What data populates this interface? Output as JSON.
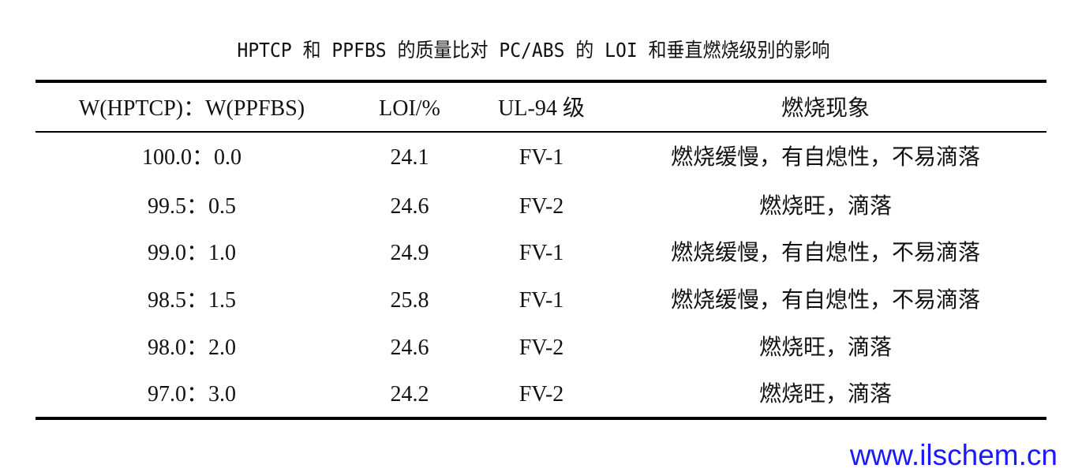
{
  "title": "HPTCP 和 PPFBS 的质量比对 PC/ABS 的 LOI 和垂直燃烧级别的影响",
  "table": {
    "headers": [
      "W(HPTCP)：W(PPFBS)",
      "LOI/%",
      "UL-94 级",
      "燃烧现象"
    ],
    "rows": [
      [
        "100.0：0.0",
        "24.1",
        "FV-1",
        "燃烧缓慢，有自熄性，不易滴落"
      ],
      [
        "99.5：0.5",
        "24.6",
        "FV-2",
        "燃烧旺，滴落"
      ],
      [
        "99.0：1.0",
        "24.9",
        "FV-1",
        "燃烧缓慢，有自熄性，不易滴落"
      ],
      [
        "98.5：1.5",
        "25.8",
        "FV-1",
        "燃烧缓慢，有自熄性，不易滴落"
      ],
      [
        "98.0：2.0",
        "24.6",
        "FV-2",
        "燃烧旺，滴落"
      ],
      [
        "97.0：3.0",
        "24.2",
        "FV-2",
        "燃烧旺，滴落"
      ]
    ]
  },
  "watermark": "www.ilschem.cn",
  "colors": {
    "watermark": "#1a1aff",
    "text": "#111111"
  }
}
